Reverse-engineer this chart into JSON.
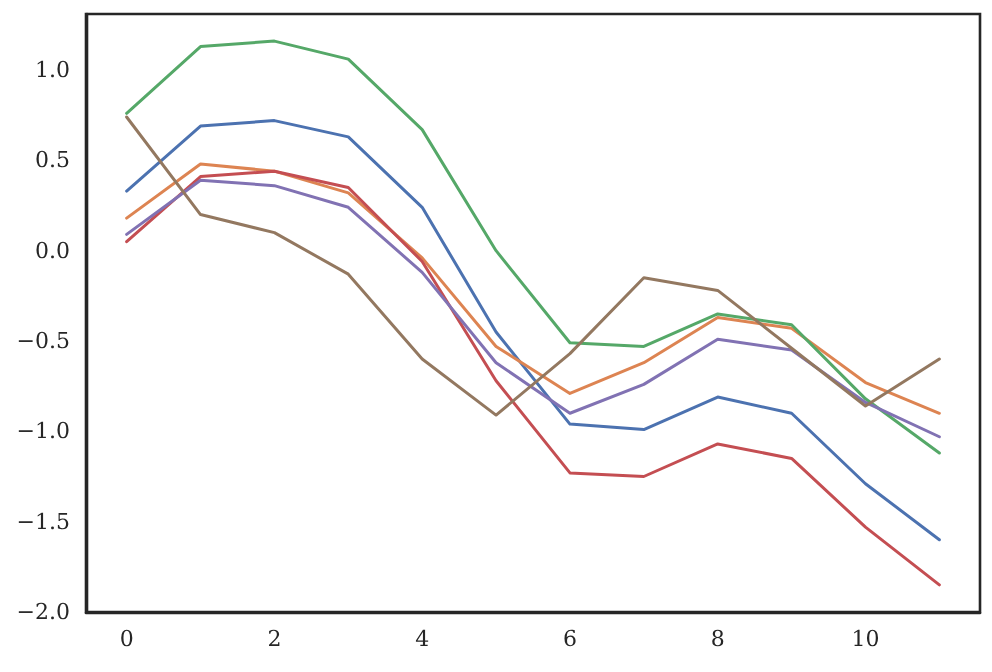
{
  "chart_data": {
    "type": "line",
    "x": [
      0,
      1,
      2,
      3,
      4,
      5,
      6,
      7,
      8,
      9,
      10,
      11
    ],
    "series": [
      {
        "color": "#4c72b0",
        "values": [
          0.33,
          0.69,
          0.72,
          0.63,
          0.24,
          -0.45,
          -0.96,
          -0.99,
          -0.81,
          -0.9,
          -1.29,
          -1.6
        ]
      },
      {
        "color": "#dd8452",
        "values": [
          0.18,
          0.48,
          0.44,
          0.32,
          -0.04,
          -0.53,
          -0.79,
          -0.62,
          -0.37,
          -0.43,
          -0.73,
          -0.9
        ]
      },
      {
        "color": "#55a868",
        "values": [
          0.76,
          1.13,
          1.16,
          1.06,
          0.67,
          0.0,
          -0.51,
          -0.53,
          -0.35,
          -0.41,
          -0.82,
          -1.12
        ]
      },
      {
        "color": "#c44e52",
        "values": [
          0.05,
          0.41,
          0.44,
          0.35,
          -0.06,
          -0.72,
          -1.23,
          -1.25,
          -1.07,
          -1.15,
          -1.53,
          -1.85
        ]
      },
      {
        "color": "#8172b3",
        "values": [
          0.09,
          0.39,
          0.36,
          0.24,
          -0.12,
          -0.62,
          -0.9,
          -0.74,
          -0.49,
          -0.55,
          -0.84,
          -1.03
        ]
      },
      {
        "color": "#937860",
        "values": [
          0.74,
          0.2,
          0.1,
          -0.13,
          -0.6,
          -0.91,
          -0.57,
          -0.15,
          -0.22,
          -0.54,
          -0.86,
          -0.6
        ]
      }
    ],
    "xlim": [
      -0.55,
      11.55
    ],
    "xticks": [
      0,
      2,
      4,
      6,
      8,
      10
    ],
    "ylim": [
      -2.0,
      1.31
    ],
    "yticks": [
      {
        "value": -2,
        "label": "−2.0"
      },
      {
        "value": -1.5,
        "label": "−1.5"
      },
      {
        "value": -1,
        "label": "−1.0"
      },
      {
        "value": -0.5,
        "label": "−0.5"
      },
      {
        "value": 0,
        "label": "0.0"
      },
      {
        "value": 0.5,
        "label": "0.5"
      },
      {
        "value": 1,
        "label": "1.0"
      }
    ],
    "grid": false,
    "marker": "none",
    "line_style": "solid"
  }
}
